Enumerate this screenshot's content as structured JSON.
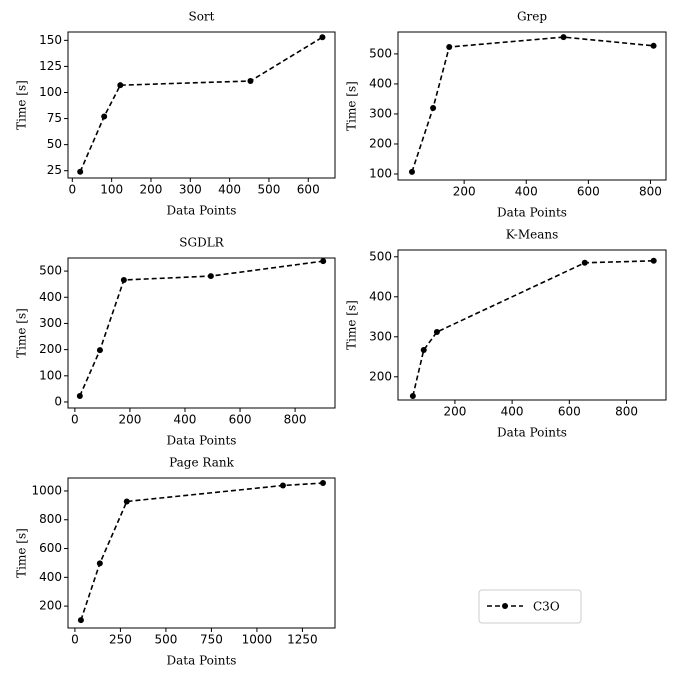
{
  "chart_data": [
    {
      "type": "line",
      "title": "Sort",
      "x_label": "Data Points",
      "y_label": "Time [s]",
      "x": [
        20,
        81,
        122,
        453,
        636
      ],
      "series": [
        {
          "color": "#000000",
          "values": [
            24,
            77,
            107,
            111,
            153
          ]
        }
      ],
      "xlim": [
        -11,
        668
      ],
      "ylim": [
        18,
        158
      ],
      "xticks": [
        0,
        100,
        200,
        300,
        400,
        500,
        600
      ],
      "yticks": [
        25,
        50,
        75,
        100,
        125,
        150
      ]
    },
    {
      "type": "line",
      "title": "Grep",
      "x_label": "Data Points",
      "y_label": "Time [s]",
      "x": [
        32,
        100,
        152,
        520,
        810
      ],
      "series": [
        {
          "color": "#000000",
          "values": [
            107,
            320,
            523,
            556,
            527
          ]
        }
      ],
      "xlim": [
        -13,
        850
      ],
      "ylim": [
        80,
        573
      ],
      "xticks": [
        200,
        400,
        600,
        800
      ],
      "yticks": [
        100,
        200,
        300,
        400,
        500
      ]
    },
    {
      "type": "line",
      "title": "SGDLR",
      "x_label": "Data Points",
      "y_label": "Time [s]",
      "x": [
        18,
        91,
        178,
        494,
        902
      ],
      "series": [
        {
          "color": "#000000",
          "values": [
            23,
            198,
            466,
            481,
            538
          ]
        }
      ],
      "xlim": [
        -25,
        945
      ],
      "ylim": [
        -23,
        550
      ],
      "xticks": [
        0,
        200,
        400,
        600,
        800
      ],
      "yticks": [
        0,
        100,
        200,
        300,
        400,
        500
      ]
    },
    {
      "type": "line",
      "title": "K-Means",
      "x_label": "Data Points",
      "y_label": "Time [s]",
      "x": [
        53,
        91,
        137,
        654,
        895
      ],
      "series": [
        {
          "color": "#000000",
          "values": [
            152,
            267,
            312,
            485,
            490
          ]
        }
      ],
      "xlim": [
        1,
        938
      ],
      "ylim": [
        142,
        517
      ],
      "xticks": [
        200,
        400,
        600,
        800
      ],
      "yticks": [
        200,
        300,
        400,
        500
      ]
    },
    {
      "type": "line",
      "title": "Page Rank",
      "x_label": "Data Points",
      "y_label": "Time [s]",
      "x": [
        33,
        137,
        285,
        1143,
        1363
      ],
      "series": [
        {
          "color": "#000000",
          "values": [
            103,
            497,
            927,
            1038,
            1055
          ]
        }
      ],
      "xlim": [
        -38,
        1429
      ],
      "ylim": [
        48,
        1090
      ],
      "xticks": [
        0,
        250,
        500,
        750,
        1000,
        1250
      ],
      "yticks": [
        200,
        400,
        600,
        800,
        1000
      ]
    }
  ],
  "legend": {
    "name": "C3O",
    "color": "#000000",
    "position": "lower right"
  }
}
